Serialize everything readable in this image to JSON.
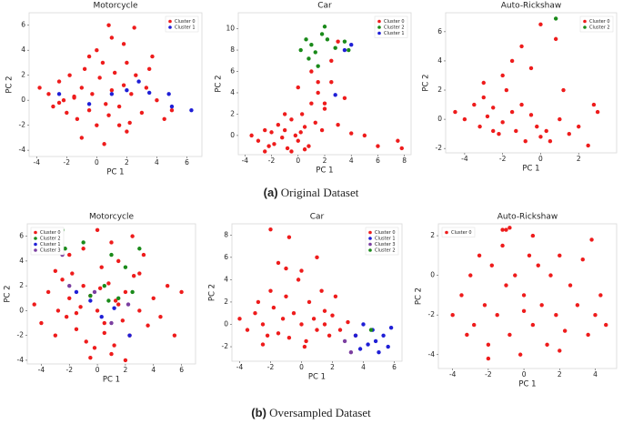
{
  "chart_data": [
    {
      "type": "scatter",
      "title": "Motorcycle",
      "xlabel": "PC 1",
      "ylabel": "PC 2",
      "xlim": [
        -4.5,
        7
      ],
      "ylim": [
        -4.5,
        7
      ],
      "xticks": [
        -4,
        -2,
        0,
        2,
        4,
        6
      ],
      "yticks": [
        -4,
        -2,
        0,
        2,
        4,
        6
      ],
      "legend": "upper right",
      "series": [
        {
          "name": "Cluster 0",
          "color": "#ee1c1c",
          "x": [
            -3.8,
            -3.2,
            -2.9,
            -2.5,
            -2.2,
            -2,
            -1.8,
            -1.5,
            -1.3,
            -1,
            -0.8,
            -0.5,
            -0.3,
            0,
            0.2,
            0.4,
            0.6,
            0.8,
            1,
            1.2,
            1.5,
            1.8,
            2,
            2.3,
            2.6,
            3,
            3.3,
            3.7,
            4,
            4.5,
            5,
            -1,
            0,
            1,
            2,
            0.5,
            -0.5,
            1.5,
            2.5,
            3.5,
            -2.5,
            0.8,
            1.8,
            2.2,
            -1.5
          ],
          "y": [
            1,
            0.5,
            -0.5,
            1.5,
            0,
            -1,
            2,
            0.3,
            -1.5,
            1,
            2.5,
            -0.8,
            0.5,
            -2,
            1.8,
            3,
            -0.3,
            -1.2,
            0.8,
            2.2,
            -0.5,
            1.2,
            -2.5,
            0.5,
            2,
            -1,
            1,
            3.5,
            0,
            -1.5,
            -0.8,
            -3,
            4,
            5,
            3,
            -3.5,
            3.5,
            -2,
            5.8,
            2.5,
            -0.2,
            6,
            4.5,
            -1.8,
            0.2
          ]
        },
        {
          "name": "Cluster 1",
          "color": "#1f1fd6",
          "x": [
            -2.5,
            -0.5,
            1,
            2,
            2.8,
            3.5,
            4.8,
            5,
            6.3,
            6.5
          ],
          "y": [
            0.5,
            -0.3,
            0.5,
            0.8,
            1.5,
            0.6,
            0.5,
            -0.5,
            -0.8,
            6.2
          ]
        }
      ]
    },
    {
      "type": "scatter",
      "title": "Car",
      "xlabel": "PC 1",
      "ylabel": "PC 2",
      "xlim": [
        -4.5,
        8.5
      ],
      "ylim": [
        -1.8,
        11.5
      ],
      "xticks": [
        -4,
        -2,
        0,
        2,
        4,
        6,
        8
      ],
      "yticks": [
        0,
        2,
        4,
        6,
        8,
        10
      ],
      "legend": "upper right",
      "series": [
        {
          "name": "Cluster 0",
          "color": "#ee1c1c",
          "x": [
            -3.5,
            -3,
            -2.5,
            -2.2,
            -2,
            -1.8,
            -1.5,
            -1.2,
            -1,
            -0.8,
            -0.5,
            -0.2,
            0,
            0.3,
            0.5,
            0.8,
            1,
            1.3,
            1.5,
            1.8,
            2,
            2.5,
            3,
            3.5,
            4,
            5,
            6,
            7.5,
            7.8,
            -1,
            0,
            1,
            2,
            -0.5,
            0.5,
            1.5,
            -2.5,
            2.5,
            3,
            0.2
          ],
          "y": [
            0,
            -0.5,
            0.5,
            -1,
            0.3,
            -0.8,
            1,
            -0.2,
            0.5,
            -1.2,
            1.5,
            0,
            -0.5,
            2,
            0.8,
            -1,
            3,
            1.2,
            4,
            0.5,
            2.5,
            5,
            1,
            3.5,
            0.2,
            0,
            -1,
            -0.5,
            -1.2,
            2,
            4.5,
            6,
            3,
            -1.5,
            -1.3,
            5,
            -1.5,
            7,
            8.8,
            0.3
          ]
        },
        {
          "name": "Cluster 2",
          "color": "#1a8a1a",
          "x": [
            0.2,
            0.6,
            1,
            1.3,
            1.8,
            2,
            2.2,
            2.8,
            3.5,
            3.8,
            1.5,
            0.8
          ],
          "y": [
            8,
            9,
            8.5,
            7.8,
            9.5,
            10.2,
            9,
            8.2,
            8.8,
            8,
            6.5,
            7.2
          ]
        },
        {
          "name": "Cluster 1",
          "color": "#1f1fd6",
          "x": [
            2.8,
            3.5,
            4
          ],
          "y": [
            3.8,
            8,
            8.5
          ]
        }
      ]
    },
    {
      "type": "scatter",
      "title": "Auto-Rickshaw",
      "xlabel": "PC 1",
      "ylabel": "PC 2",
      "xlim": [
        -5,
        4
      ],
      "ylim": [
        -2.3,
        7.3
      ],
      "xticks": [
        -4,
        -2,
        0,
        2
      ],
      "yticks": [
        -2,
        0,
        2,
        4,
        6
      ],
      "legend": "upper right",
      "series": [
        {
          "name": "Cluster 0",
          "color": "#ee1c1c",
          "x": [
            -4.5,
            -4,
            -3.5,
            -3.2,
            -3,
            -2.8,
            -2.5,
            -2.2,
            -2,
            -1.8,
            -1.5,
            -1.3,
            -1,
            -0.8,
            -0.5,
            -0.2,
            0,
            0.3,
            0.5,
            1,
            1.5,
            2,
            2.5,
            3,
            -2,
            -1,
            0,
            -1.5,
            -0.5,
            1.2,
            2.2,
            2.8,
            3.5,
            -3,
            -2.5,
            0.8
          ],
          "y": [
            0.5,
            0,
            1,
            -0.5,
            1.5,
            0.2,
            0.8,
            -1,
            -0.2,
            2,
            0.5,
            -0.8,
            1,
            -1.5,
            0.3,
            -0.5,
            -1.2,
            -0.8,
            -1.5,
            0,
            -1,
            -0.5,
            -1.8,
            0.5,
            3,
            5,
            6.5,
            4,
            3.5,
            2,
            6.8,
            1,
            6.2,
            2.5,
            -0.8,
            5.5
          ]
        },
        {
          "name": "Cluster 2",
          "color": "#1a8a1a",
          "x": [
            0.8
          ],
          "y": [
            6.9
          ]
        }
      ]
    },
    {
      "type": "scatter",
      "title": "Motorcycle",
      "xlabel": "PC 1",
      "ylabel": "PC 2",
      "xlim": [
        -5,
        7
      ],
      "ylim": [
        -4.3,
        7
      ],
      "xticks": [
        -4,
        -2,
        0,
        2,
        4,
        6
      ],
      "yticks": [
        -4,
        -2,
        0,
        2,
        4,
        6
      ],
      "legend": "upper left",
      "series": [
        {
          "name": "Cluster 0",
          "color": "#ee1c1c",
          "x": [
            -4.5,
            -4,
            -3.5,
            -3,
            -2.8,
            -2.5,
            -2.2,
            -2,
            -1.8,
            -1.5,
            -1.2,
            -1,
            -0.8,
            -0.5,
            -0.2,
            0,
            0.3,
            0.5,
            0.8,
            1,
            1.3,
            1.5,
            1.8,
            2,
            2.3,
            2.6,
            3,
            3.3,
            3.6,
            4,
            4.5,
            5,
            5.5,
            6,
            -1,
            0,
            1,
            2,
            3,
            -2,
            -0.5,
            0.5,
            1.5,
            2.5,
            -3,
            -1.5,
            0.2,
            1.2
          ],
          "y": [
            0.5,
            -1,
            1.5,
            -2,
            0,
            2.5,
            -0.5,
            1,
            3,
            -1.5,
            0.3,
            2,
            -2.5,
            1.2,
            -3,
            0,
            3.5,
            -1,
            2.2,
            -3.5,
            0.8,
            4,
            -0.8,
            1.5,
            -2,
            2.8,
            0,
            4.5,
            -1.2,
            1,
            -0.5,
            2,
            -2,
            1.5,
            5,
            6.5,
            5.5,
            -4,
            3,
            4.5,
            -3.8,
            -1.8,
            0.5,
            6,
            3.2,
            -0.2,
            1.8,
            -2.8
          ]
        },
        {
          "name": "Cluster 2",
          "color": "#1a8a1a",
          "x": [
            -2.5,
            -2.3,
            -1,
            0.5,
            1,
            1.5,
            2,
            2.5,
            3,
            -0.5,
            0.8
          ],
          "y": [
            6.5,
            5,
            5.5,
            2,
            4.5,
            1,
            3.5,
            1.5,
            5,
            1.2,
            0.8
          ]
        },
        {
          "name": "Cluster 1",
          "color": "#1f1fd6",
          "x": [
            -1.5,
            -0.5,
            0.3,
            1.2,
            2.3
          ],
          "y": [
            1.5,
            0.8,
            -0.5,
            0.2,
            -2
          ]
        },
        {
          "name": "Cluster 3",
          "color": "#7b3fa0",
          "x": [
            -2,
            -0.2,
            1,
            2.2,
            -2.5
          ],
          "y": [
            2,
            1.5,
            -1,
            0.5,
            4.5
          ]
        }
      ]
    },
    {
      "type": "scatter",
      "title": "Car",
      "xlabel": "PC 1",
      "ylabel": "PC 2",
      "xlim": [
        -4.5,
        6.5
      ],
      "ylim": [
        -3.3,
        9
      ],
      "xticks": [
        -4,
        -2,
        0,
        2,
        4,
        6
      ],
      "yticks": [
        -2,
        0,
        2,
        4,
        6,
        8
      ],
      "legend": "upper right",
      "series": [
        {
          "name": "Cluster 0",
          "color": "#ee1c1c",
          "x": [
            -4,
            -3.5,
            -3,
            -2.8,
            -2.5,
            -2.2,
            -2,
            -1.8,
            -1.5,
            -1.2,
            -1,
            -0.8,
            -0.5,
            -0.2,
            0,
            0.3,
            0.5,
            0.8,
            1,
            1.3,
            1.5,
            1.8,
            2,
            2.5,
            3,
            3.5,
            -2,
            -1,
            0,
            1,
            -1.5,
            0.2,
            2.2,
            -2.5,
            -0.8,
            1.5
          ],
          "y": [
            0.5,
            -0.5,
            1,
            2,
            0,
            -1,
            3,
            1.5,
            -0.8,
            0.5,
            2.5,
            -1.2,
            1,
            4,
            0,
            -1.5,
            2,
            0.5,
            -0.5,
            3,
            1.2,
            -1,
            0.8,
            -0.5,
            0.2,
            -1,
            8.5,
            5,
            4.8,
            6,
            5.5,
            -2,
            2.5,
            -1.8,
            7.8,
            0
          ]
        },
        {
          "name": "Cluster 1",
          "color": "#1f1fd6",
          "x": [
            3.5,
            4,
            4.3,
            4.6,
            5,
            5.3,
            5.6,
            5.8,
            4.8,
            3.8
          ],
          "y": [
            -1,
            0,
            -1.8,
            -0.5,
            -2.5,
            -1,
            -2,
            -0.3,
            -1.5,
            -2.2
          ]
        },
        {
          "name": "Cluster 3",
          "color": "#7b3fa0",
          "x": [
            2.8,
            3.2
          ],
          "y": [
            -1.5,
            -2.5
          ]
        },
        {
          "name": "Cluster 2",
          "color": "#1a8a1a",
          "x": [
            4.5
          ],
          "y": [
            -0.5
          ]
        }
      ]
    },
    {
      "type": "scatter",
      "title": "Auto-Rickshaw",
      "xlabel": "PC 1",
      "ylabel": "PC 2",
      "xlim": [
        -4.8,
        5.2
      ],
      "ylim": [
        -4.7,
        2.6
      ],
      "xticks": [
        -4,
        -2,
        0,
        2,
        4
      ],
      "yticks": [
        -4,
        -2,
        0,
        2
      ],
      "legend": "upper left",
      "series": [
        {
          "name": "Cluster 0",
          "color": "#ee1c1c",
          "x": [
            -4,
            -3.5,
            -3.2,
            -3,
            -2.8,
            -2.5,
            -2.2,
            -2,
            -1.8,
            -1.5,
            -1.2,
            -1,
            -0.8,
            -0.5,
            -0.2,
            0,
            0.3,
            0.5,
            0.8,
            1,
            1.3,
            1.5,
            1.8,
            2,
            2.3,
            2.6,
            3,
            3.3,
            3.6,
            4,
            4.3,
            4.6,
            -1.2,
            -0.8,
            -1,
            0.5,
            -2,
            2,
            3.8,
            0
          ],
          "y": [
            -2,
            -1,
            -3,
            0,
            -2.5,
            1,
            -1.5,
            -3.5,
            0.5,
            -2,
            1.5,
            -0.5,
            -3,
            0,
            -4,
            -1,
            1,
            -2.5,
            0.5,
            -1.5,
            -3.5,
            0,
            -2,
            1,
            -2.8,
            -0.5,
            -1.5,
            0.8,
            -3,
            -2,
            -1,
            -2.5,
            2.3,
            2.4,
            2.3,
            2,
            -4.2,
            -3.8,
            1.8,
            -1.8
          ]
        }
      ]
    }
  ],
  "captions": [
    {
      "label": "(a)",
      "text": "Original Dataset"
    },
    {
      "label": "(b)",
      "text": "Oversampled Dataset"
    }
  ]
}
